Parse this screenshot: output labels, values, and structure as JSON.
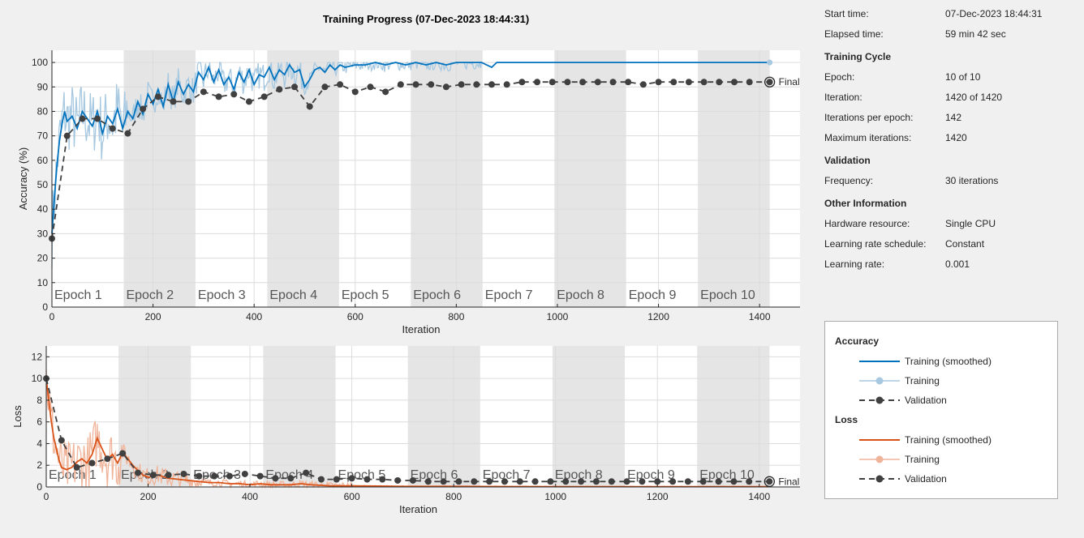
{
  "title": "Training Progress (07-Dec-2023 18:44:31)",
  "info": {
    "start_time_label": "Start time:",
    "start_time": "07-Dec-2023 18:44:31",
    "elapsed_label": "Elapsed time:",
    "elapsed": "59 min 42 sec",
    "cycle_heading": "Training Cycle",
    "epoch_label": "Epoch:",
    "epoch": "10 of 10",
    "iteration_label": "Iteration:",
    "iteration": "1420 of 1420",
    "ipe_label": "Iterations per epoch:",
    "ipe": "142",
    "maxit_label": "Maximum iterations:",
    "maxit": "1420",
    "validation_heading": "Validation",
    "freq_label": "Frequency:",
    "freq": "30 iterations",
    "other_heading": "Other Information",
    "hw_label": "Hardware resource:",
    "hw": "Single CPU",
    "lrs_label": "Learning rate schedule:",
    "lrs": "Constant",
    "lr_label": "Learning rate:",
    "lr": "0.001"
  },
  "legend": {
    "accuracy_heading": "Accuracy",
    "loss_heading": "Loss",
    "training_smoothed": "Training (smoothed)",
    "training": "Training",
    "validation": "Validation"
  },
  "colors": {
    "acc_smoothed": "#0072bd",
    "acc_raw": "#a6c8e0",
    "loss_smoothed": "#d95319",
    "loss_raw": "#f0b49a",
    "validation": "#404040",
    "epoch_shade": "#e5e5e5"
  },
  "chart_data": [
    {
      "type": "line",
      "ylabel": "Accuracy (%)",
      "xlabel": "Iteration",
      "xlim": [
        0,
        1420
      ],
      "ylim": [
        0,
        105
      ],
      "x_ticks": [
        0,
        200,
        400,
        600,
        800,
        1000,
        1200,
        1400
      ],
      "y_ticks": [
        0,
        10,
        20,
        30,
        40,
        50,
        60,
        70,
        80,
        90,
        100
      ],
      "grid": true,
      "epoch_labels": [
        "Epoch 1",
        "Epoch 2",
        "Epoch 3",
        "Epoch 4",
        "Epoch 5",
        "Epoch 6",
        "Epoch 7",
        "Epoch 8",
        "Epoch 9",
        "Epoch 10"
      ],
      "final_label": "Final",
      "series": [
        {
          "name": "Training (smoothed)",
          "x": [
            0,
            5,
            10,
            15,
            20,
            25,
            30,
            40,
            50,
            60,
            70,
            80,
            90,
            100,
            110,
            120,
            130,
            140,
            150,
            160,
            170,
            180,
            190,
            200,
            210,
            220,
            230,
            240,
            250,
            260,
            270,
            280,
            290,
            300,
            310,
            320,
            330,
            340,
            350,
            360,
            370,
            380,
            390,
            400,
            410,
            420,
            430,
            440,
            450,
            460,
            470,
            480,
            490,
            500,
            510,
            520,
            530,
            540,
            550,
            560,
            570,
            580,
            600,
            620,
            640,
            660,
            680,
            700,
            720,
            740,
            760,
            780,
            800,
            820,
            850,
            870,
            880,
            900,
            950,
            1000,
            1100,
            1200,
            1300,
            1420
          ],
          "y": [
            30,
            45,
            58,
            68,
            75,
            80,
            76,
            78,
            73,
            80,
            77,
            74,
            80,
            71,
            78,
            75,
            81,
            73,
            80,
            77,
            84,
            79,
            87,
            83,
            89,
            82,
            91,
            84,
            92,
            87,
            91,
            88,
            96,
            93,
            98,
            92,
            97,
            91,
            94,
            89,
            96,
            92,
            97,
            91,
            95,
            94,
            98,
            93,
            97,
            95,
            99,
            96,
            97,
            90,
            93,
            97,
            98,
            96,
            99,
            97,
            99,
            98,
            99,
            99,
            100,
            99,
            100,
            99,
            100,
            99,
            100,
            99,
            100,
            100,
            100,
            98,
            100,
            100,
            100,
            100,
            100,
            100,
            100,
            100
          ]
        },
        {
          "name": "Validation",
          "x": [
            0,
            30,
            60,
            90,
            120,
            150,
            180,
            210,
            240,
            270,
            300,
            330,
            360,
            390,
            420,
            450,
            480,
            510,
            540,
            570,
            600,
            630,
            660,
            690,
            720,
            750,
            780,
            810,
            840,
            870,
            900,
            930,
            960,
            990,
            1020,
            1050,
            1080,
            1110,
            1140,
            1170,
            1200,
            1230,
            1260,
            1290,
            1320,
            1350,
            1380,
            1420
          ],
          "y": [
            28,
            70,
            77,
            77,
            73,
            71,
            81,
            86,
            84,
            84,
            88,
            86,
            87,
            84,
            86,
            89,
            90,
            82,
            90,
            91,
            88,
            90,
            88,
            91,
            91,
            91,
            90,
            91,
            91,
            91,
            91,
            92,
            92,
            92,
            92,
            92,
            92,
            92,
            92,
            91,
            92,
            92,
            92,
            92,
            92,
            92,
            92,
            92
          ]
        }
      ]
    },
    {
      "type": "line",
      "ylabel": "Loss",
      "xlabel": "Iteration",
      "xlim": [
        0,
        1420
      ],
      "ylim": [
        0,
        13
      ],
      "x_ticks": [
        0,
        200,
        400,
        600,
        800,
        1000,
        1200,
        1400
      ],
      "y_ticks": [
        0,
        2,
        4,
        6,
        8,
        10,
        12
      ],
      "grid": true,
      "epoch_labels": [
        "Epoch 1",
        "Epoch 2",
        "Epoch 3",
        "Epoch 4",
        "Epoch 5",
        "Epoch 6",
        "Epoch 7",
        "Epoch 8",
        "Epoch 9",
        "Epoch 10"
      ],
      "final_label": "Final",
      "series": [
        {
          "name": "Training (smoothed)",
          "x": [
            0,
            5,
            10,
            15,
            20,
            25,
            30,
            40,
            50,
            60,
            70,
            80,
            90,
            100,
            110,
            120,
            130,
            140,
            150,
            160,
            170,
            180,
            190,
            200,
            220,
            240,
            260,
            280,
            300,
            320,
            340,
            360,
            380,
            400,
            420,
            440,
            460,
            480,
            500,
            520,
            540,
            560,
            600,
            650,
            700,
            800,
            900,
            1000,
            1100,
            1200,
            1300,
            1420
          ],
          "y": [
            10,
            8,
            6,
            4.5,
            3.5,
            2.5,
            1.8,
            1.6,
            1.8,
            2.3,
            2.6,
            2.2,
            3,
            4.5,
            3.5,
            2.5,
            3,
            2.2,
            3.2,
            2.6,
            2,
            1.5,
            1.1,
            0.9,
            1.1,
            0.8,
            0.7,
            0.6,
            0.5,
            0.4,
            0.4,
            0.3,
            0.3,
            0.2,
            0.3,
            0.2,
            0.2,
            0.2,
            0.3,
            0.2,
            0.15,
            0.1,
            0.1,
            0.08,
            0.05,
            0.05,
            0.04,
            0.03,
            0.03,
            0.03,
            0.03,
            0.03
          ]
        },
        {
          "name": "Validation",
          "x": [
            0,
            30,
            60,
            90,
            120,
            150,
            180,
            210,
            240,
            270,
            300,
            330,
            360,
            390,
            420,
            450,
            480,
            510,
            540,
            570,
            600,
            630,
            660,
            690,
            720,
            750,
            780,
            810,
            840,
            870,
            900,
            930,
            960,
            990,
            1020,
            1050,
            1080,
            1110,
            1140,
            1170,
            1200,
            1230,
            1260,
            1290,
            1320,
            1350,
            1380,
            1420
          ],
          "y": [
            10,
            4.3,
            1.8,
            2.2,
            2.6,
            3.1,
            1.3,
            1.1,
            1.1,
            1.2,
            1,
            1,
            1,
            1.2,
            1,
            0.8,
            0.8,
            1.3,
            0.7,
            0.7,
            0.8,
            0.7,
            0.7,
            0.6,
            0.6,
            0.5,
            0.5,
            0.5,
            0.5,
            0.5,
            0.5,
            0.5,
            0.5,
            0.5,
            0.5,
            0.5,
            0.5,
            0.5,
            0.5,
            0.5,
            0.5,
            0.5,
            0.5,
            0.5,
            0.5,
            0.5,
            0.5,
            0.5
          ]
        }
      ]
    }
  ]
}
